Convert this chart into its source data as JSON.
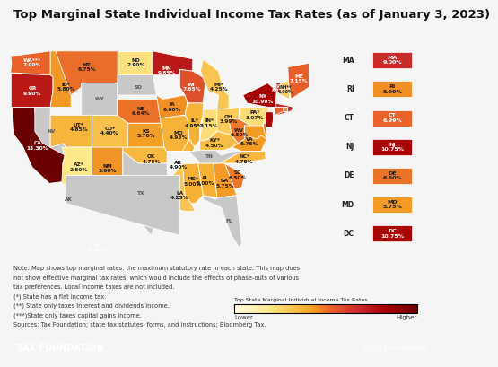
{
  "title": "Top Marginal State Individual Income Tax Rates (as of January 3, 2023)",
  "footer_left": "TAX FOUNDATION",
  "footer_right": "@TaxFoundation",
  "footer_bg": "#1a9fe0",
  "colorbar_title": "Top State Marginal Individual Income Tax Rates",
  "colorbar_lower": "Lower",
  "colorbar_higher": "Higher",
  "note_lines": [
    "Note: Map shows top marginal rates: the maximum statutory rate in each state. This map does",
    "not show effective marginal tax rates, which would include the effects of phase-outs of various",
    "tax preferences. Local income taxes are not included.",
    "(*) State has a flat income tax.",
    "(**) State only taxes interest and dividends income.",
    "(***)State only taxes capital gains income.",
    "Sources: Tax Foundation; state tax statutes, forms, and instructions; Bloomberg Tax."
  ],
  "state_data": {
    "WA": {
      "rate": 7.0,
      "label": "WA***\n7.00%"
    },
    "OR": {
      "rate": 9.9,
      "label": "OR\n9.90%"
    },
    "CA": {
      "rate": 13.3,
      "label": "CA\n13.30%"
    },
    "NV": {
      "rate": 0.0,
      "label": "NV"
    },
    "ID": {
      "rate": 5.8,
      "label": "ID*\n5.80%"
    },
    "MT": {
      "rate": 6.75,
      "label": "MT\n6.75%"
    },
    "WY": {
      "rate": 0.0,
      "label": "WY"
    },
    "UT": {
      "rate": 4.85,
      "label": "UT*\n4.85%"
    },
    "CO": {
      "rate": 4.4,
      "label": "CO*\n4.40%"
    },
    "AZ": {
      "rate": 2.5,
      "label": "AZ*\n2.50%"
    },
    "NM": {
      "rate": 5.9,
      "label": "NM\n5.90%"
    },
    "ND": {
      "rate": 2.9,
      "label": "ND\n2.90%"
    },
    "SD": {
      "rate": 0.0,
      "label": "SD"
    },
    "NE": {
      "rate": 6.64,
      "label": "NE\n6.64%"
    },
    "KS": {
      "rate": 5.7,
      "label": "KS\n5.70%"
    },
    "OK": {
      "rate": 4.75,
      "label": "OK\n4.75%"
    },
    "TX": {
      "rate": 0.0,
      "label": "TX"
    },
    "MN": {
      "rate": 9.85,
      "label": "MN\n9.85%"
    },
    "IA": {
      "rate": 6.0,
      "label": "IA\n6.00%"
    },
    "MO": {
      "rate": 4.95,
      "label": "MO\n4.95%"
    },
    "AR": {
      "rate": 4.9,
      "label": "AR\n4.90%"
    },
    "LA": {
      "rate": 4.25,
      "label": "LA\n4.25%"
    },
    "MS": {
      "rate": 5.0,
      "label": "MS*\n5.00%"
    },
    "WI": {
      "rate": 7.65,
      "label": "WI\n7.65%"
    },
    "IL": {
      "rate": 4.95,
      "label": "IL*\n4.95%"
    },
    "IN": {
      "rate": 3.15,
      "label": "IN*\n3.15%"
    },
    "MI": {
      "rate": 4.25,
      "label": "MI*\n4.25%"
    },
    "OH": {
      "rate": 3.99,
      "label": "OH\n3.99%"
    },
    "KY": {
      "rate": 4.5,
      "label": "KY*\n4.50%"
    },
    "TN": {
      "rate": 0.0,
      "label": "TN"
    },
    "AL": {
      "rate": 5.0,
      "label": "AL\n5.00%"
    },
    "GA": {
      "rate": 5.75,
      "label": "GA\n5.75%"
    },
    "FL": {
      "rate": 0.0,
      "label": "FL"
    },
    "SC": {
      "rate": 6.5,
      "label": "SC\n6.50%"
    },
    "NC": {
      "rate": 4.75,
      "label": "NC*\n4.75%"
    },
    "VA": {
      "rate": 5.75,
      "label": "VA\n5.75%"
    },
    "WV": {
      "rate": 6.5,
      "label": "WV\n6.50%"
    },
    "PA": {
      "rate": 3.07,
      "label": "PA*\n3.07%"
    },
    "NY": {
      "rate": 10.9,
      "label": "NY\n10.90%"
    },
    "VT": {
      "rate": 8.75,
      "label": "VT\n8.75%"
    },
    "NH": {
      "rate": 4.0,
      "label": "NH**\n4.00%"
    },
    "ME": {
      "rate": 7.15,
      "label": "ME\n7.15%"
    },
    "MA": {
      "rate": 9.0,
      "label": "MA\n9.00%"
    },
    "RI": {
      "rate": 5.99,
      "label": "RI\n5.99%"
    },
    "CT": {
      "rate": 6.99,
      "label": "CT\n6.99%"
    },
    "NJ": {
      "rate": 10.75,
      "label": "NJ\n10.75%"
    },
    "DE": {
      "rate": 6.6,
      "label": "DE\n6.60%"
    },
    "MD": {
      "rate": 5.75,
      "label": "MD\n5.75%"
    },
    "DC": {
      "rate": 10.75,
      "label": "DC\n10.75%"
    },
    "AK": {
      "rate": 0.0,
      "label": "AK"
    },
    "HI": {
      "rate": 11.0,
      "label": "HI\n11.00%"
    }
  },
  "color_stops": [
    [
      0.0,
      "#fffde0"
    ],
    [
      2.5,
      "#fde98a"
    ],
    [
      4.0,
      "#fac95a"
    ],
    [
      5.5,
      "#f5a623"
    ],
    [
      7.0,
      "#e8622a"
    ],
    [
      9.0,
      "#cc2b2b"
    ],
    [
      11.0,
      "#a50000"
    ],
    [
      13.3,
      "#6b0000"
    ]
  ],
  "no_tax_color": "#c8c8c8",
  "bg_color": "#f5f5f5",
  "title_fontsize": 9.5,
  "note_fontsize": 4.8,
  "state_fontsize": 4.2,
  "sidebar_states": [
    "MA",
    "RI",
    "CT",
    "NJ",
    "DE",
    "MD",
    "DC"
  ],
  "map_xlim": [
    -125,
    -65
  ],
  "map_ylim": [
    23,
    50
  ]
}
